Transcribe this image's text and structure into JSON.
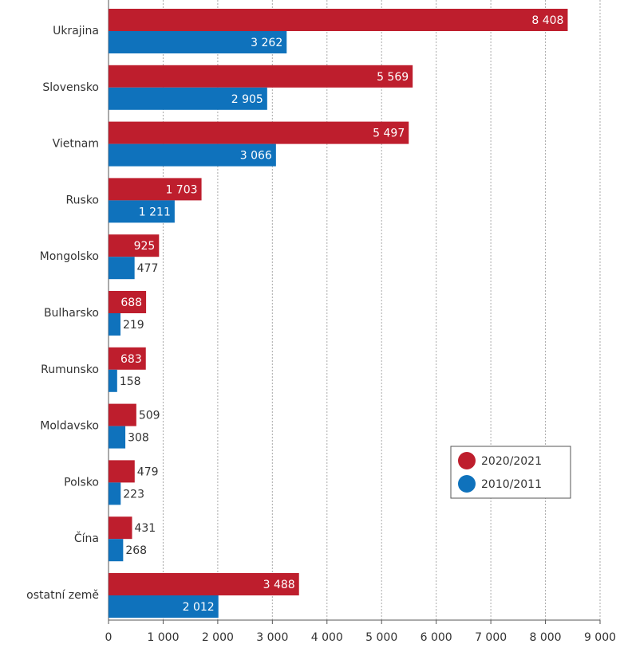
{
  "chart_data": {
    "type": "hbar",
    "categories": [
      "Ukrajina",
      "Slovensko",
      "Vietnam",
      "Rusko",
      "Mongolsko",
      "Bulharsko",
      "Rumunsko",
      "Moldavsko",
      "Polsko",
      "Čína",
      "ostatní země"
    ],
    "series": [
      {
        "name": "2020/2021",
        "color": "#be1e2d",
        "values": [
          8408,
          5569,
          5497,
          1703,
          925,
          688,
          683,
          509,
          479,
          431,
          3488
        ],
        "value_labels": [
          "8 408",
          "5 569",
          "5 497",
          "1 703",
          "925",
          "688",
          "683",
          "509",
          "479",
          "431",
          "3 488"
        ]
      },
      {
        "name": "2010/2011",
        "color": "#0f72bc",
        "values": [
          3262,
          2905,
          3066,
          1211,
          477,
          219,
          158,
          308,
          223,
          268,
          2012
        ],
        "value_labels": [
          "3 262",
          "2 905",
          "3 066",
          "1 211",
          "477",
          "219",
          "158",
          "308",
          "223",
          "268",
          "2 012"
        ]
      }
    ],
    "xlim": [
      0,
      9000
    ],
    "xticks": [
      0,
      {
        "value": 1000,
        "label": "1 000"
      },
      {
        "value": 2000,
        "label": "2 000"
      },
      {
        "value": 3000,
        "label": "3 000"
      },
      {
        "value": 4000,
        "label": "4 000"
      },
      {
        "value": 5000,
        "label": "5 000"
      },
      {
        "value": 6000,
        "label": "6 000"
      },
      {
        "value": 7000,
        "label": "7 000"
      },
      {
        "value": 8000,
        "label": "8 000"
      },
      {
        "value": 9000,
        "label": "9 000"
      }
    ],
    "grid": true,
    "legend": "lower right"
  }
}
